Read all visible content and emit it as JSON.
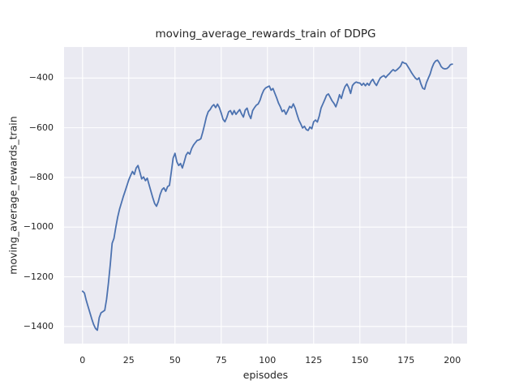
{
  "figure": {
    "title": "moving_average_rewards_train of DDPG",
    "background": "#ffffff"
  },
  "chart_data": {
    "type": "line",
    "title": "moving_average_rewards_train of DDPG",
    "xlabel": "episodes",
    "ylabel": "moving_average_rewards_train",
    "grid": true,
    "legend": "none",
    "xlim": [
      -10,
      208
    ],
    "ylim": [
      -1469,
      -275
    ],
    "xticks": {
      "values": [
        0,
        25,
        50,
        75,
        100,
        125,
        150,
        175,
        200
      ],
      "labels": [
        "0",
        "25",
        "50",
        "75",
        "100",
        "125",
        "150",
        "175",
        "200"
      ]
    },
    "yticks": {
      "values": [
        -400,
        -600,
        -800,
        -1000,
        -1200,
        -1400
      ],
      "labels": [
        "−400",
        "−600",
        "−800",
        "−1000",
        "−1200",
        "−1400"
      ]
    },
    "style": {
      "axes_background": "#eaeaf2",
      "grid_color": "#ffffff",
      "text_color": "#262626",
      "line_color": "#4c72b0",
      "line_width": 1.8
    },
    "series": [
      {
        "name": "moving_average_rewards_train",
        "color": "#4c72b0",
        "x": [
          0,
          1,
          2,
          3,
          4,
          5,
          6,
          7,
          8,
          9,
          10,
          11,
          12,
          13,
          14,
          15,
          16,
          17,
          18,
          19,
          20,
          21,
          22,
          23,
          24,
          25,
          26,
          27,
          28,
          29,
          30,
          31,
          32,
          33,
          34,
          35,
          36,
          37,
          38,
          39,
          40,
          41,
          42,
          43,
          44,
          45,
          46,
          47,
          48,
          49,
          50,
          51,
          52,
          53,
          54,
          55,
          56,
          57,
          58,
          59,
          60,
          61,
          62,
          63,
          64,
          65,
          66,
          67,
          68,
          69,
          70,
          71,
          72,
          73,
          74,
          75,
          76,
          77,
          78,
          79,
          80,
          81,
          82,
          83,
          84,
          85,
          86,
          87,
          88,
          89,
          90,
          91,
          92,
          93,
          94,
          95,
          96,
          97,
          98,
          99,
          100,
          101,
          102,
          103,
          104,
          105,
          106,
          107,
          108,
          109,
          110,
          111,
          112,
          113,
          114,
          115,
          116,
          117,
          118,
          119,
          120,
          121,
          122,
          123,
          124,
          125,
          126,
          127,
          128,
          129,
          130,
          131,
          132,
          133,
          134,
          135,
          136,
          137,
          138,
          139,
          140,
          141,
          142,
          143,
          144,
          145,
          146,
          147,
          148,
          149,
          150,
          151,
          152,
          153,
          154,
          155,
          156,
          157,
          158,
          159,
          160,
          161,
          162,
          163,
          164,
          165,
          166,
          167,
          168,
          169,
          170,
          171,
          172,
          173,
          174,
          175,
          176,
          177,
          178,
          179,
          180,
          181,
          182,
          183,
          184,
          185,
          186,
          187,
          188,
          189,
          190,
          191,
          192,
          193,
          194,
          195,
          196,
          197,
          198,
          199,
          200
        ],
        "y": [
          -1258,
          -1265,
          -1295,
          -1320,
          -1345,
          -1370,
          -1392,
          -1408,
          -1415,
          -1365,
          -1345,
          -1340,
          -1335,
          -1290,
          -1225,
          -1150,
          -1065,
          -1045,
          -1000,
          -960,
          -928,
          -903,
          -878,
          -856,
          -833,
          -810,
          -792,
          -776,
          -788,
          -762,
          -752,
          -778,
          -806,
          -798,
          -813,
          -803,
          -830,
          -856,
          -882,
          -905,
          -916,
          -897,
          -868,
          -849,
          -842,
          -856,
          -837,
          -832,
          -778,
          -722,
          -703,
          -737,
          -752,
          -744,
          -762,
          -737,
          -710,
          -699,
          -706,
          -684,
          -670,
          -660,
          -651,
          -649,
          -644,
          -618,
          -588,
          -556,
          -535,
          -527,
          -514,
          -507,
          -519,
          -505,
          -519,
          -541,
          -566,
          -576,
          -559,
          -536,
          -531,
          -547,
          -531,
          -546,
          -536,
          -527,
          -544,
          -557,
          -529,
          -521,
          -547,
          -563,
          -531,
          -519,
          -509,
          -504,
          -489,
          -466,
          -449,
          -440,
          -436,
          -432,
          -449,
          -442,
          -461,
          -480,
          -501,
          -516,
          -535,
          -529,
          -546,
          -531,
          -514,
          -520,
          -504,
          -521,
          -546,
          -569,
          -584,
          -601,
          -594,
          -607,
          -611,
          -597,
          -604,
          -576,
          -569,
          -577,
          -554,
          -521,
          -504,
          -487,
          -469,
          -464,
          -478,
          -492,
          -502,
          -516,
          -494,
          -467,
          -482,
          -454,
          -434,
          -424,
          -439,
          -462,
          -430,
          -421,
          -416,
          -419,
          -420,
          -429,
          -421,
          -431,
          -421,
          -429,
          -414,
          -405,
          -420,
          -430,
          -414,
          -400,
          -394,
          -390,
          -398,
          -389,
          -382,
          -373,
          -366,
          -372,
          -367,
          -360,
          -352,
          -335,
          -340,
          -342,
          -354,
          -366,
          -379,
          -390,
          -400,
          -406,
          -399,
          -423,
          -441,
          -445,
          -419,
          -401,
          -384,
          -359,
          -341,
          -331,
          -328,
          -339,
          -354,
          -361,
          -363,
          -362,
          -356,
          -346,
          -344
        ]
      }
    ]
  }
}
